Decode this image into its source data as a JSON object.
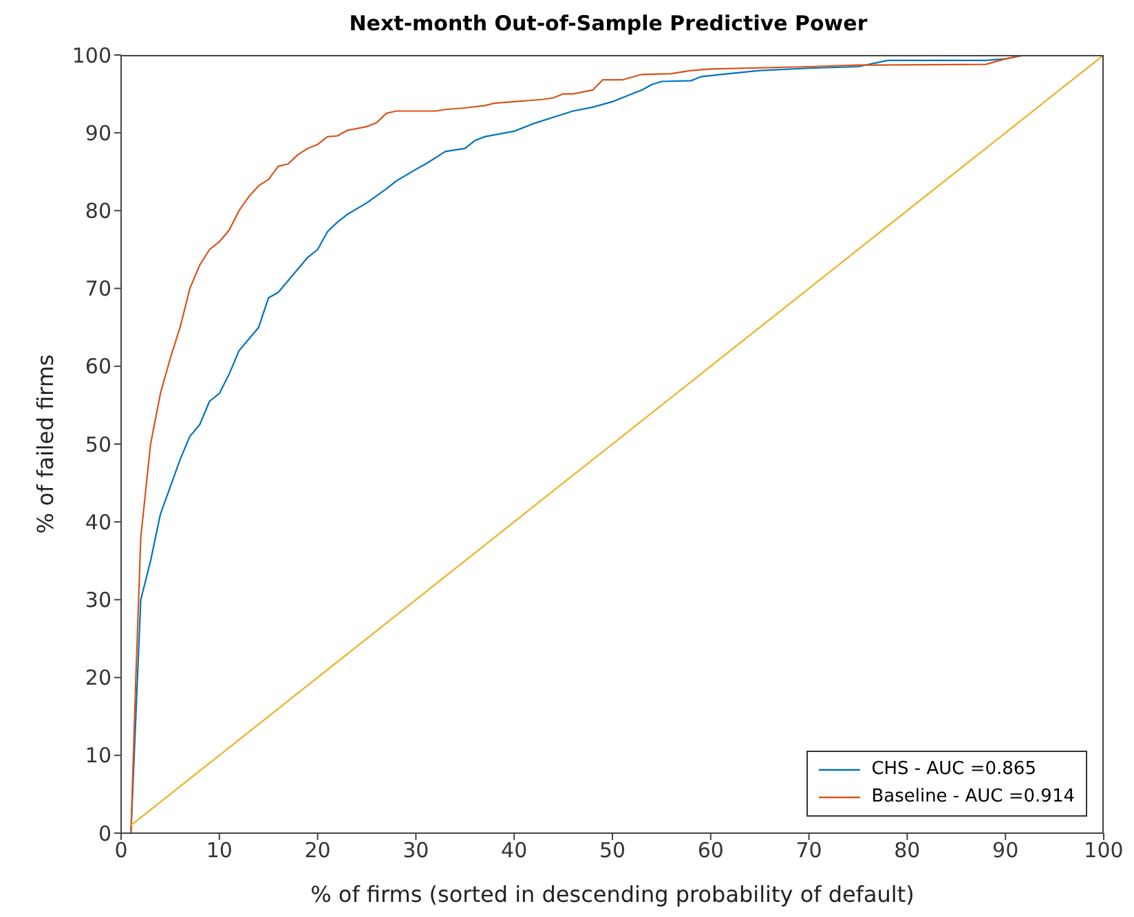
{
  "chart_data": {
    "type": "line",
    "title": "Next-month Out-of-Sample Predictive Power",
    "xlabel": "% of firms (sorted in descending probability of default)",
    "ylabel": "% of failed firms",
    "xlim": [
      0,
      100
    ],
    "ylim": [
      0,
      100
    ],
    "xticks": [
      0,
      10,
      20,
      30,
      40,
      50,
      60,
      70,
      80,
      90,
      100
    ],
    "yticks": [
      0,
      10,
      20,
      30,
      40,
      50,
      60,
      70,
      80,
      90,
      100
    ],
    "grid": false,
    "legend": "bottom right",
    "marker": "none",
    "line_style": "solid",
    "series": [
      {
        "name": "CHS - AUC =0.865",
        "color": "#0072bd",
        "x": [
          1,
          2,
          3,
          4,
          5,
          6,
          7,
          8,
          9,
          10,
          11,
          12,
          13,
          14,
          15,
          16,
          17,
          18,
          19,
          20,
          21,
          22,
          23,
          25,
          27,
          28,
          30,
          31,
          33,
          35,
          36,
          37,
          40,
          42,
          44,
          46,
          48,
          50,
          52,
          53,
          54,
          55,
          58,
          59,
          61,
          65,
          70,
          75,
          78,
          85,
          88,
          90,
          92,
          100
        ],
        "values": [
          0,
          30,
          35,
          41,
          44.5,
          48,
          51,
          52.5,
          55.5,
          56.5,
          59,
          62,
          63.5,
          65,
          68.8,
          69.5,
          71,
          72.5,
          74,
          75,
          77.3,
          78.5,
          79.5,
          81,
          82.8,
          83.8,
          85.3,
          86,
          87.6,
          88,
          89,
          89.5,
          90.2,
          91.2,
          92,
          92.8,
          93.3,
          94,
          95,
          95.5,
          96.2,
          96.6,
          96.7,
          97.2,
          97.5,
          98,
          98.3,
          98.5,
          99.3,
          99.3,
          99.3,
          99.5,
          100,
          100
        ]
      },
      {
        "name": "Baseline - AUC =0.914",
        "color": "#d95319",
        "x": [
          1,
          1.5,
          2,
          3,
          4,
          5,
          6,
          7,
          8,
          9,
          10,
          11,
          12,
          13,
          14,
          15,
          16,
          17,
          18,
          19,
          20,
          21,
          22,
          23,
          25,
          26,
          27,
          28,
          32,
          33,
          35,
          37,
          38,
          40,
          43,
          44,
          45,
          46,
          48,
          49,
          51,
          53,
          56,
          58,
          60,
          70,
          75,
          88,
          90,
          92,
          100
        ],
        "values": [
          0,
          20,
          38,
          50,
          56.5,
          61,
          65,
          70,
          73,
          75,
          76,
          77.5,
          80,
          81.8,
          83.2,
          84,
          85.7,
          86,
          87.2,
          88,
          88.5,
          89.5,
          89.6,
          90.3,
          90.8,
          91.3,
          92.5,
          92.8,
          92.8,
          93,
          93.2,
          93.5,
          93.8,
          94,
          94.3,
          94.5,
          95,
          95,
          95.5,
          96.8,
          96.8,
          97.5,
          97.6,
          98,
          98.2,
          98.5,
          98.7,
          98.8,
          99.5,
          100,
          100
        ]
      },
      {
        "color": "#edb120",
        "x": [
          1,
          100
        ],
        "values": [
          1,
          100
        ]
      }
    ]
  }
}
